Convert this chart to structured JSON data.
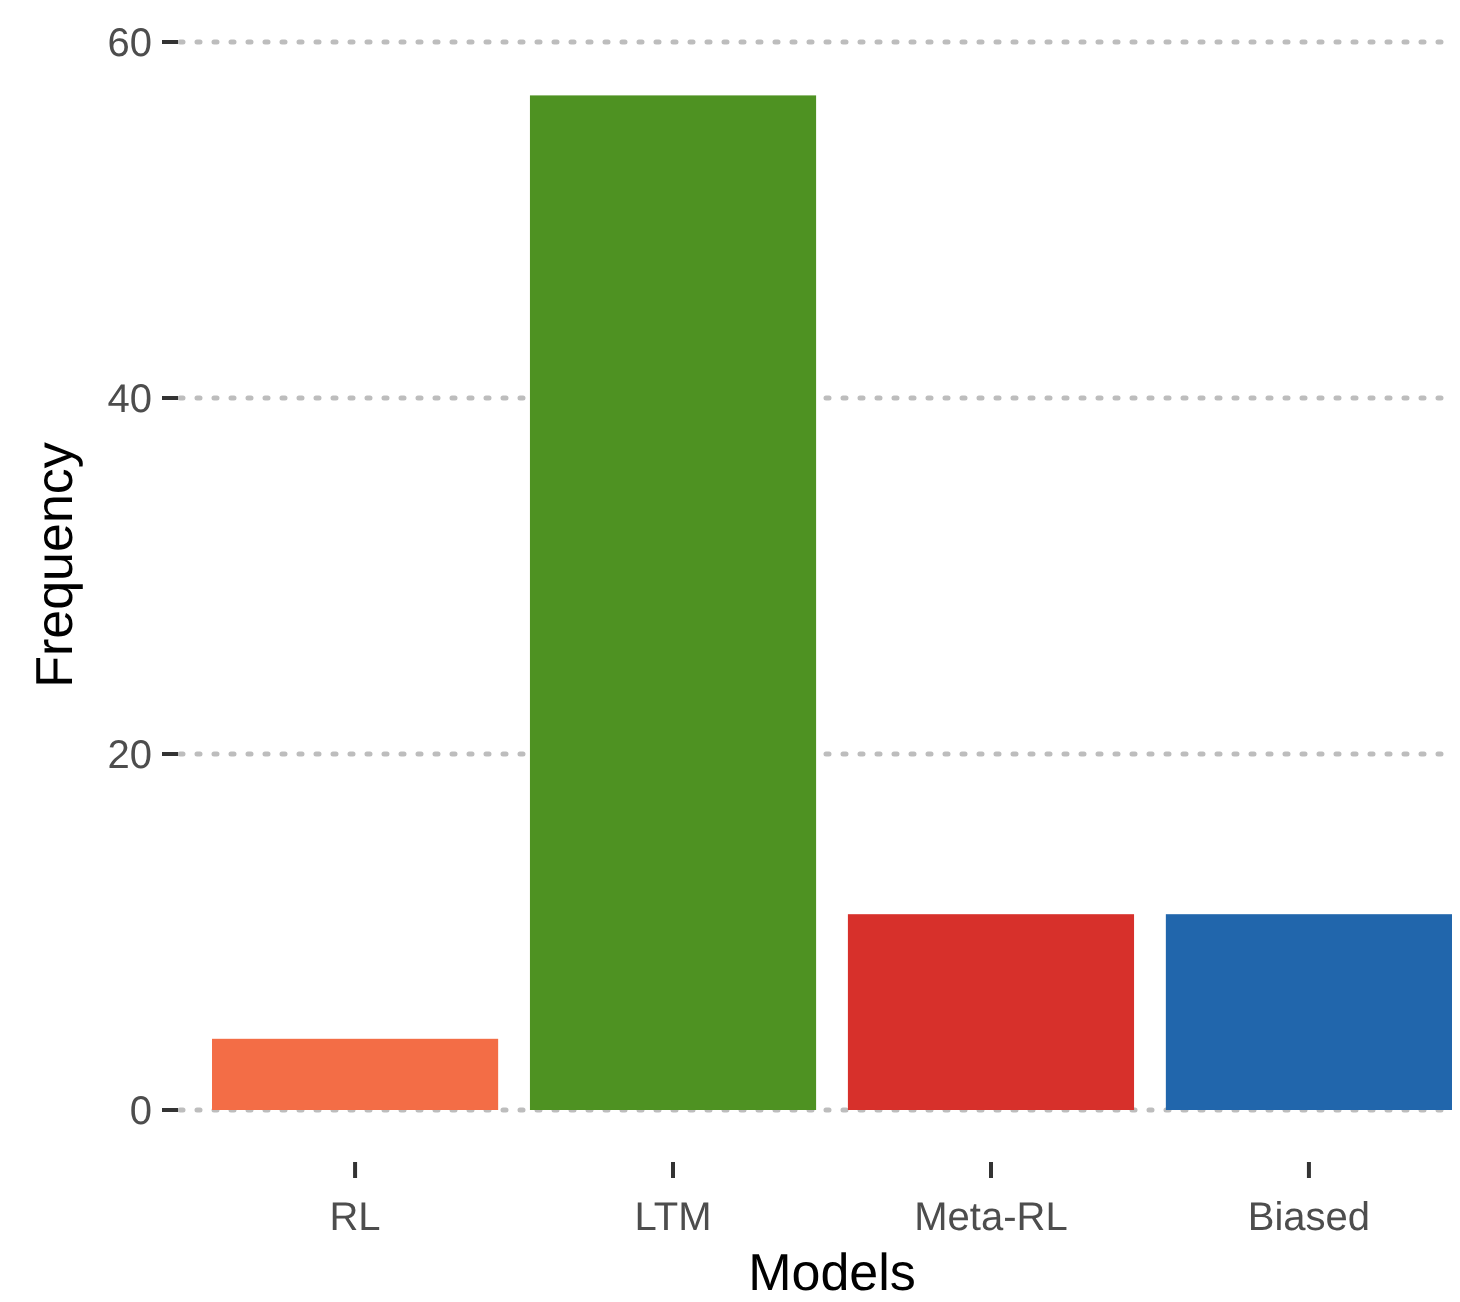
{
  "chart_data": {
    "type": "bar",
    "xlabel": "Models",
    "ylabel": "Frequency",
    "categories": [
      "RL",
      "LTM",
      "Meta-RL",
      "Biased"
    ],
    "values": [
      4,
      57,
      11,
      11
    ],
    "colors": [
      "#f36d46",
      "#4e9222",
      "#d7302b",
      "#2166ac"
    ],
    "ylim": [
      0,
      60
    ],
    "yticks": [
      0,
      20,
      40,
      60
    ],
    "grid": "y"
  }
}
